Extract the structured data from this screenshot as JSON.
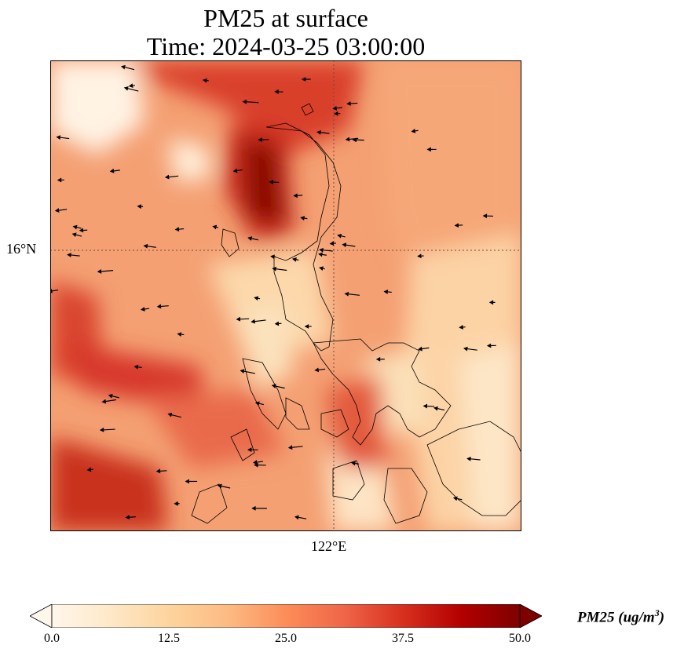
{
  "title": {
    "line1": "PM25 at surface",
    "line2": "Time: 2024-03-25 03:00:00"
  },
  "map": {
    "lat_label": "16°N",
    "lon_label": "122°E",
    "gridlines": "dotted"
  },
  "colorbar": {
    "ticks": [
      "0.0",
      "12.5",
      "25.0",
      "37.5",
      "50.0"
    ],
    "unit_label": "PM25 (ug/m",
    "unit_exp": "3",
    "unit_close": ")",
    "colormap": [
      "#fff7ec",
      "#fee8c8",
      "#fdd49e",
      "#fdbb84",
      "#fc8d59",
      "#ef6548",
      "#d7301f",
      "#b30000",
      "#7f0000"
    ],
    "extend": "both"
  },
  "colors": {
    "coastline": "#000000",
    "gridline": "#6b4a3a",
    "arrows": "#000000"
  }
}
